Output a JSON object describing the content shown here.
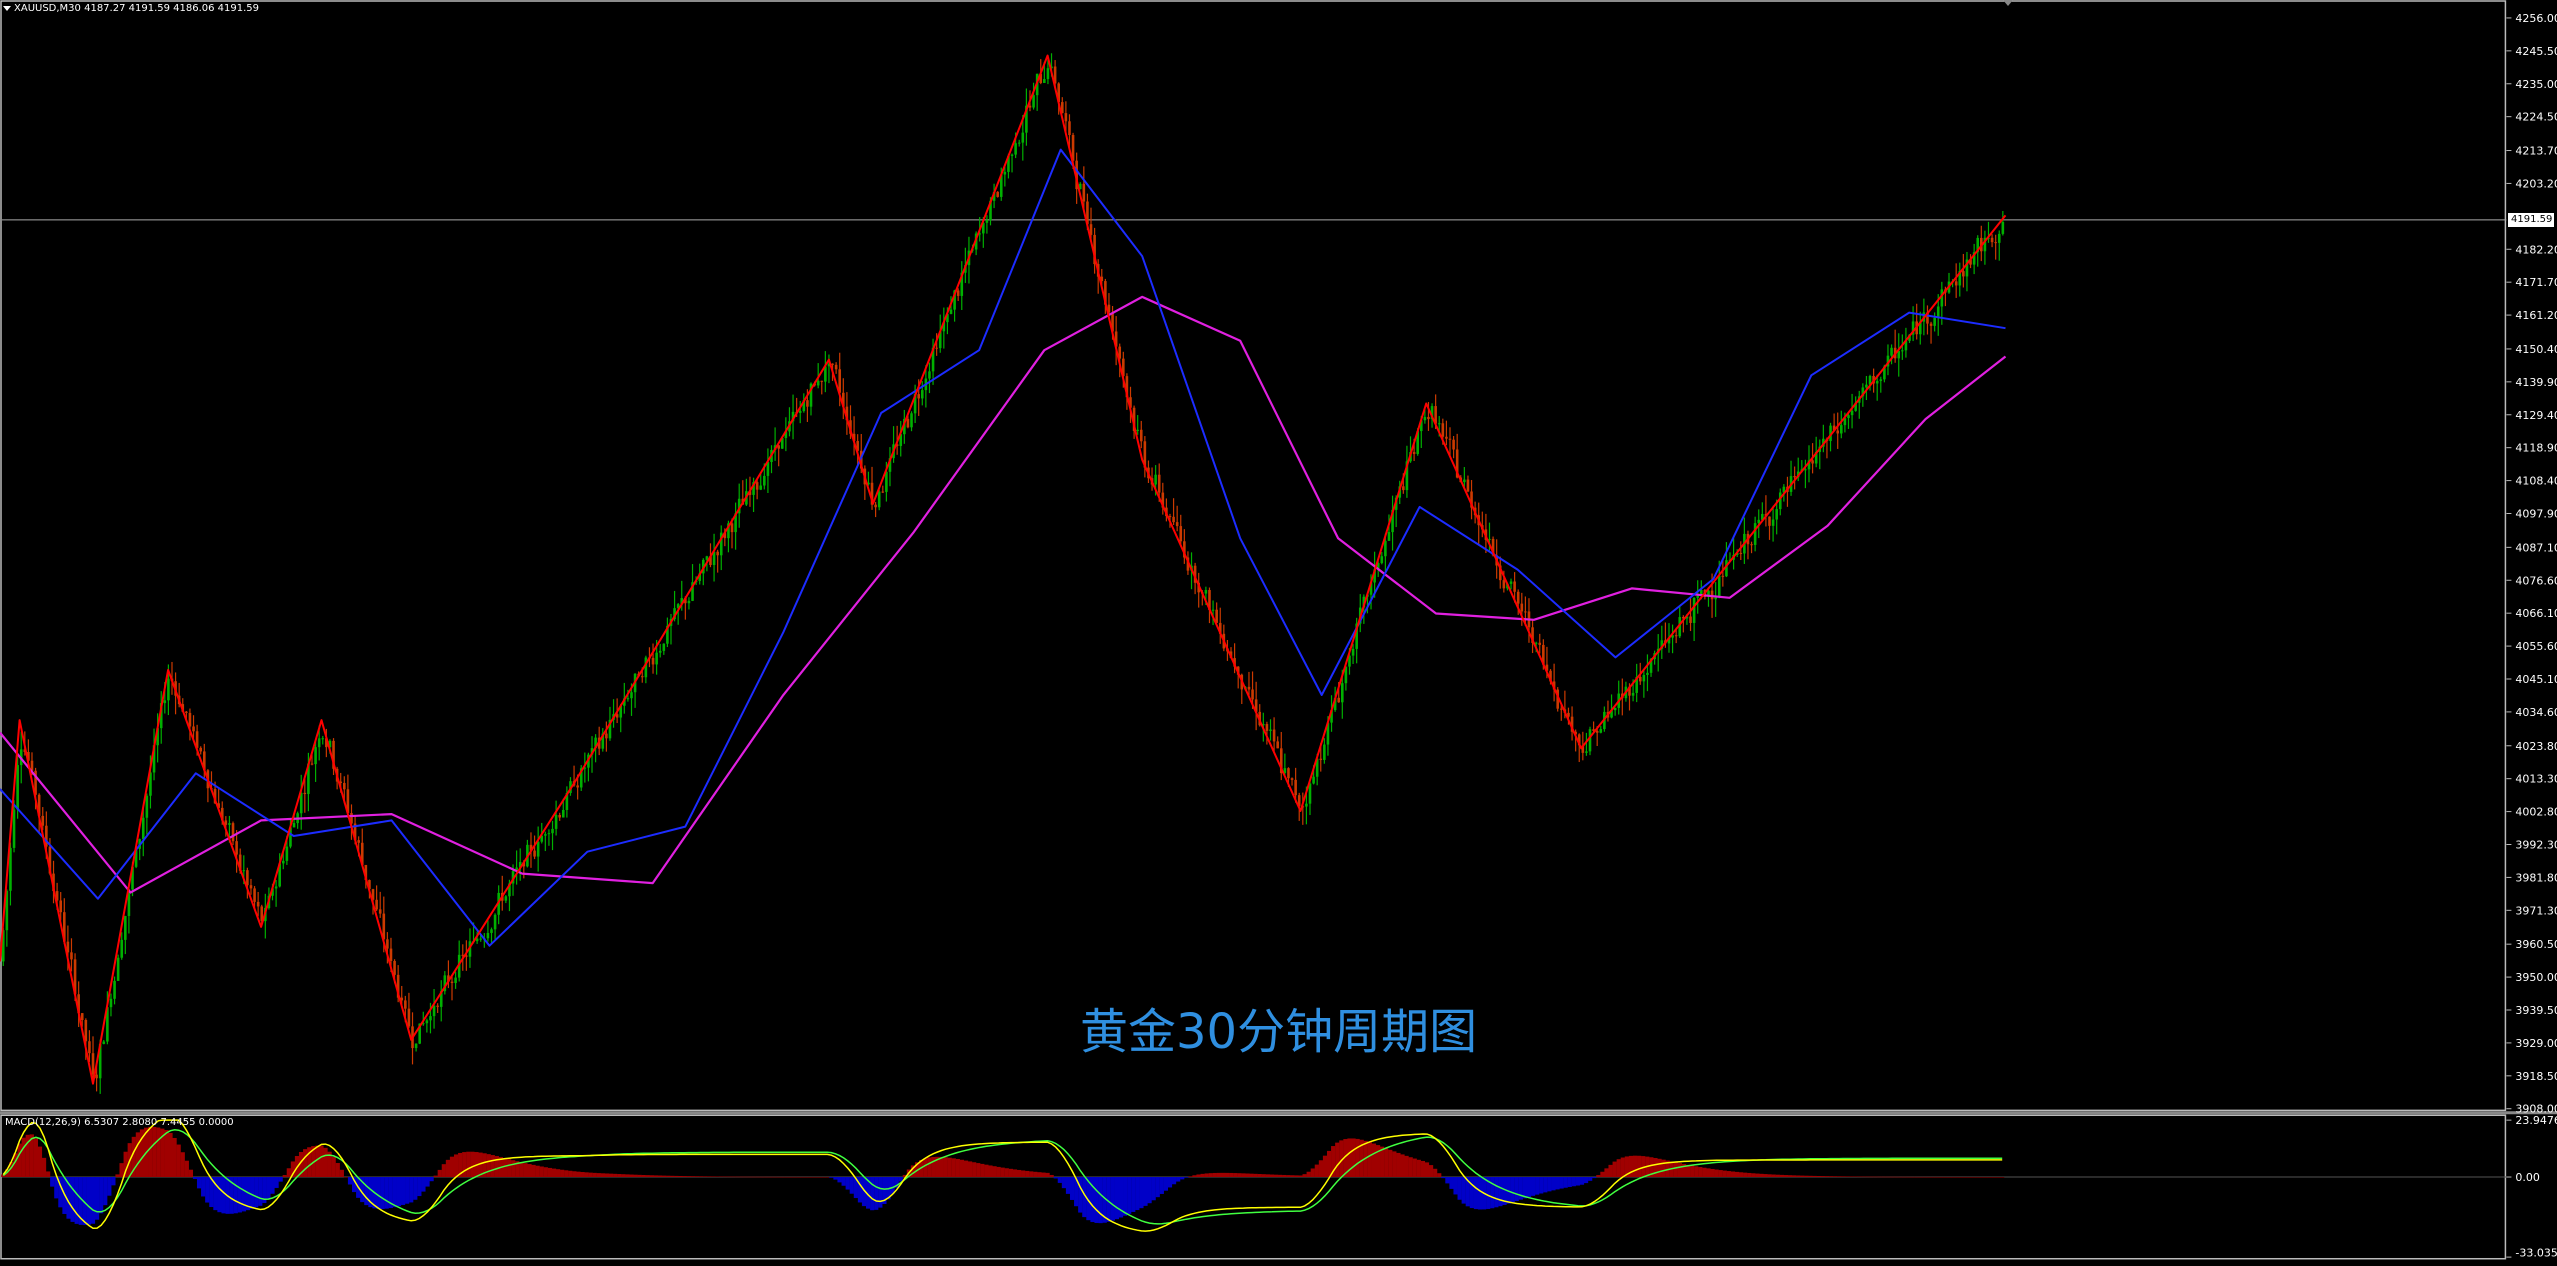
{
  "header": {
    "symbol_line": "XAUUSD,M30  4187.27 4191.59 4186.06 4191.59"
  },
  "watermark": "黄金30分钟周期图",
  "current_price_label": "4191.59",
  "macd": {
    "label": "MACD(12,26,9) 6.5307 2.8080 7.4455 0.0000",
    "axis_labels": [
      "23.9476",
      "0.00",
      "-33.0358"
    ]
  },
  "colors": {
    "background": "#000000",
    "candle_bull": "#00b000",
    "candle_bear": "#cc3a00",
    "zigzag": "#ff0000",
    "ma_fast": "#1c2cff",
    "ma_slow": "#e020e0",
    "macd_positive": "#a00000",
    "macd_negative": "#0000c8",
    "macd_signal_a": "#ffff00",
    "macd_signal_b": "#40ff40",
    "watermark": "#2f8fe0"
  },
  "chart_data": [
    {
      "type": "line",
      "title": "",
      "price_axis_ticks": [
        "4256.00",
        "4245.50",
        "4235.00",
        "4224.50",
        "4213.70",
        "4203.20",
        "4182.20",
        "4171.70",
        "4161.20",
        "4150.40",
        "4139.90",
        "4129.40",
        "4118.90",
        "4108.40",
        "4097.90",
        "4087.10",
        "4076.60",
        "4066.10",
        "4055.60",
        "4045.10",
        "4034.60",
        "4023.80",
        "4013.30",
        "4002.80",
        "3992.30",
        "3981.80",
        "3971.30",
        "3960.50",
        "3950.00",
        "3939.50",
        "3929.00",
        "3918.50",
        "3908.00"
      ],
      "ylim": [
        3908.0,
        4256.0
      ],
      "current_price": 4191.59,
      "series": [
        {
          "name": "zigzag",
          "x": [
            0,
            12,
            57,
            103,
            160,
            197,
            252,
            352,
            508,
            535,
            642,
            700,
            797,
            874,
            969,
            1229
          ],
          "values": [
            3955,
            4032,
            3916,
            4048,
            3966,
            4032,
            3930,
            4012,
            4147,
            4101,
            4244,
            4115,
            4003,
            4133,
            4023,
            4193
          ]
        },
        {
          "name": "ma_fast_approx",
          "x": [
            0,
            60,
            120,
            180,
            240,
            300,
            360,
            420,
            480,
            540,
            600,
            650,
            700,
            760,
            810,
            870,
            930,
            990,
            1050,
            1110,
            1170,
            1229
          ],
          "values": [
            4010,
            3975,
            4015,
            3995,
            4000,
            3960,
            3990,
            3998,
            4060,
            4130,
            4150,
            4214,
            4180,
            4090,
            4040,
            4100,
            4080,
            4052,
            4077,
            4142,
            4162,
            4157
          ]
        },
        {
          "name": "ma_slow_approx",
          "x": [
            0,
            80,
            160,
            240,
            320,
            400,
            480,
            560,
            640,
            700,
            760,
            820,
            880,
            940,
            1000,
            1060,
            1120,
            1180,
            1229
          ],
          "values": [
            4028,
            3977,
            4000,
            4002,
            3983,
            3980,
            4040,
            4092,
            4150,
            4167,
            4153,
            4090,
            4066,
            4064,
            4074,
            4071,
            4094,
            4128,
            4148
          ]
        }
      ],
      "legend": ""
    },
    {
      "type": "bar",
      "title": "",
      "ylim": [
        -33.0358,
        23.9476
      ],
      "current": {
        "macd": 6.5307,
        "signal": 2.808,
        "osma": 7.4455
      }
    }
  ]
}
